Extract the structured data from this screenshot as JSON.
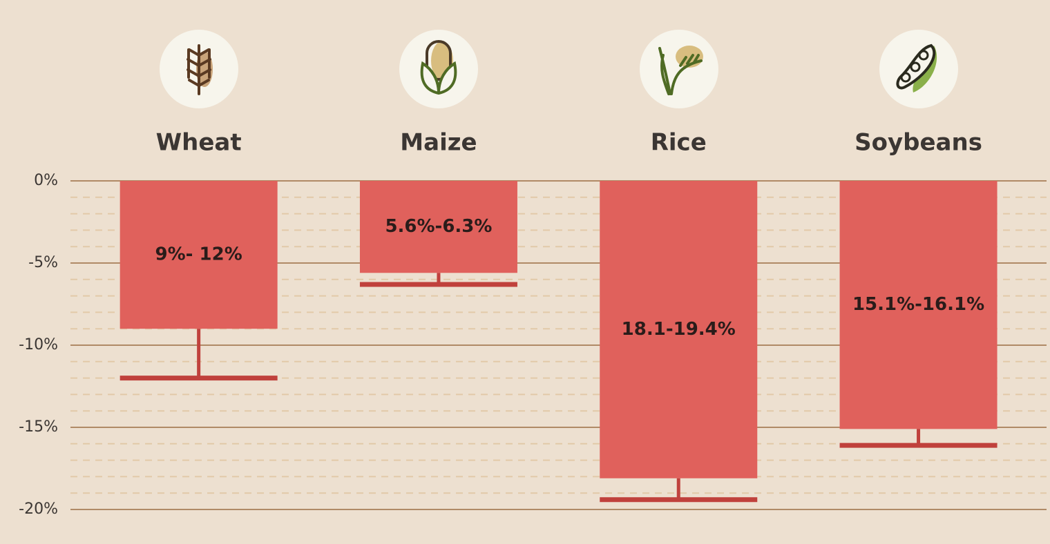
{
  "chart_data": {
    "type": "bar",
    "categories": [
      "Wheat",
      "Maize",
      "Rice",
      "Soybeans"
    ],
    "values": [
      -9,
      -5.6,
      -18.1,
      -15.1
    ],
    "error_low": [
      -12,
      -6.3,
      -19.4,
      -16.1
    ],
    "value_labels": [
      "9%- 12%",
      "5.6%-6.3%",
      "18.1-19.4%",
      "15.1%-16.1%"
    ],
    "color": "#e0615c",
    "error_color": "#c0413c",
    "ylim": [
      -20,
      0
    ],
    "yticks": [
      {
        "value": 0,
        "label": "0%"
      },
      {
        "value": -5,
        "label": "-5%"
      },
      {
        "value": -10,
        "label": "-10%"
      },
      {
        "value": -15,
        "label": "-15%"
      },
      {
        "value": -20,
        "label": "-20%"
      }
    ],
    "minor_yticks": [
      -1,
      -2,
      -3,
      -4,
      -6,
      -7,
      -8,
      -9,
      -11,
      -12,
      -13,
      -14,
      -16,
      -17,
      -18,
      -19
    ],
    "grid": true
  }
}
